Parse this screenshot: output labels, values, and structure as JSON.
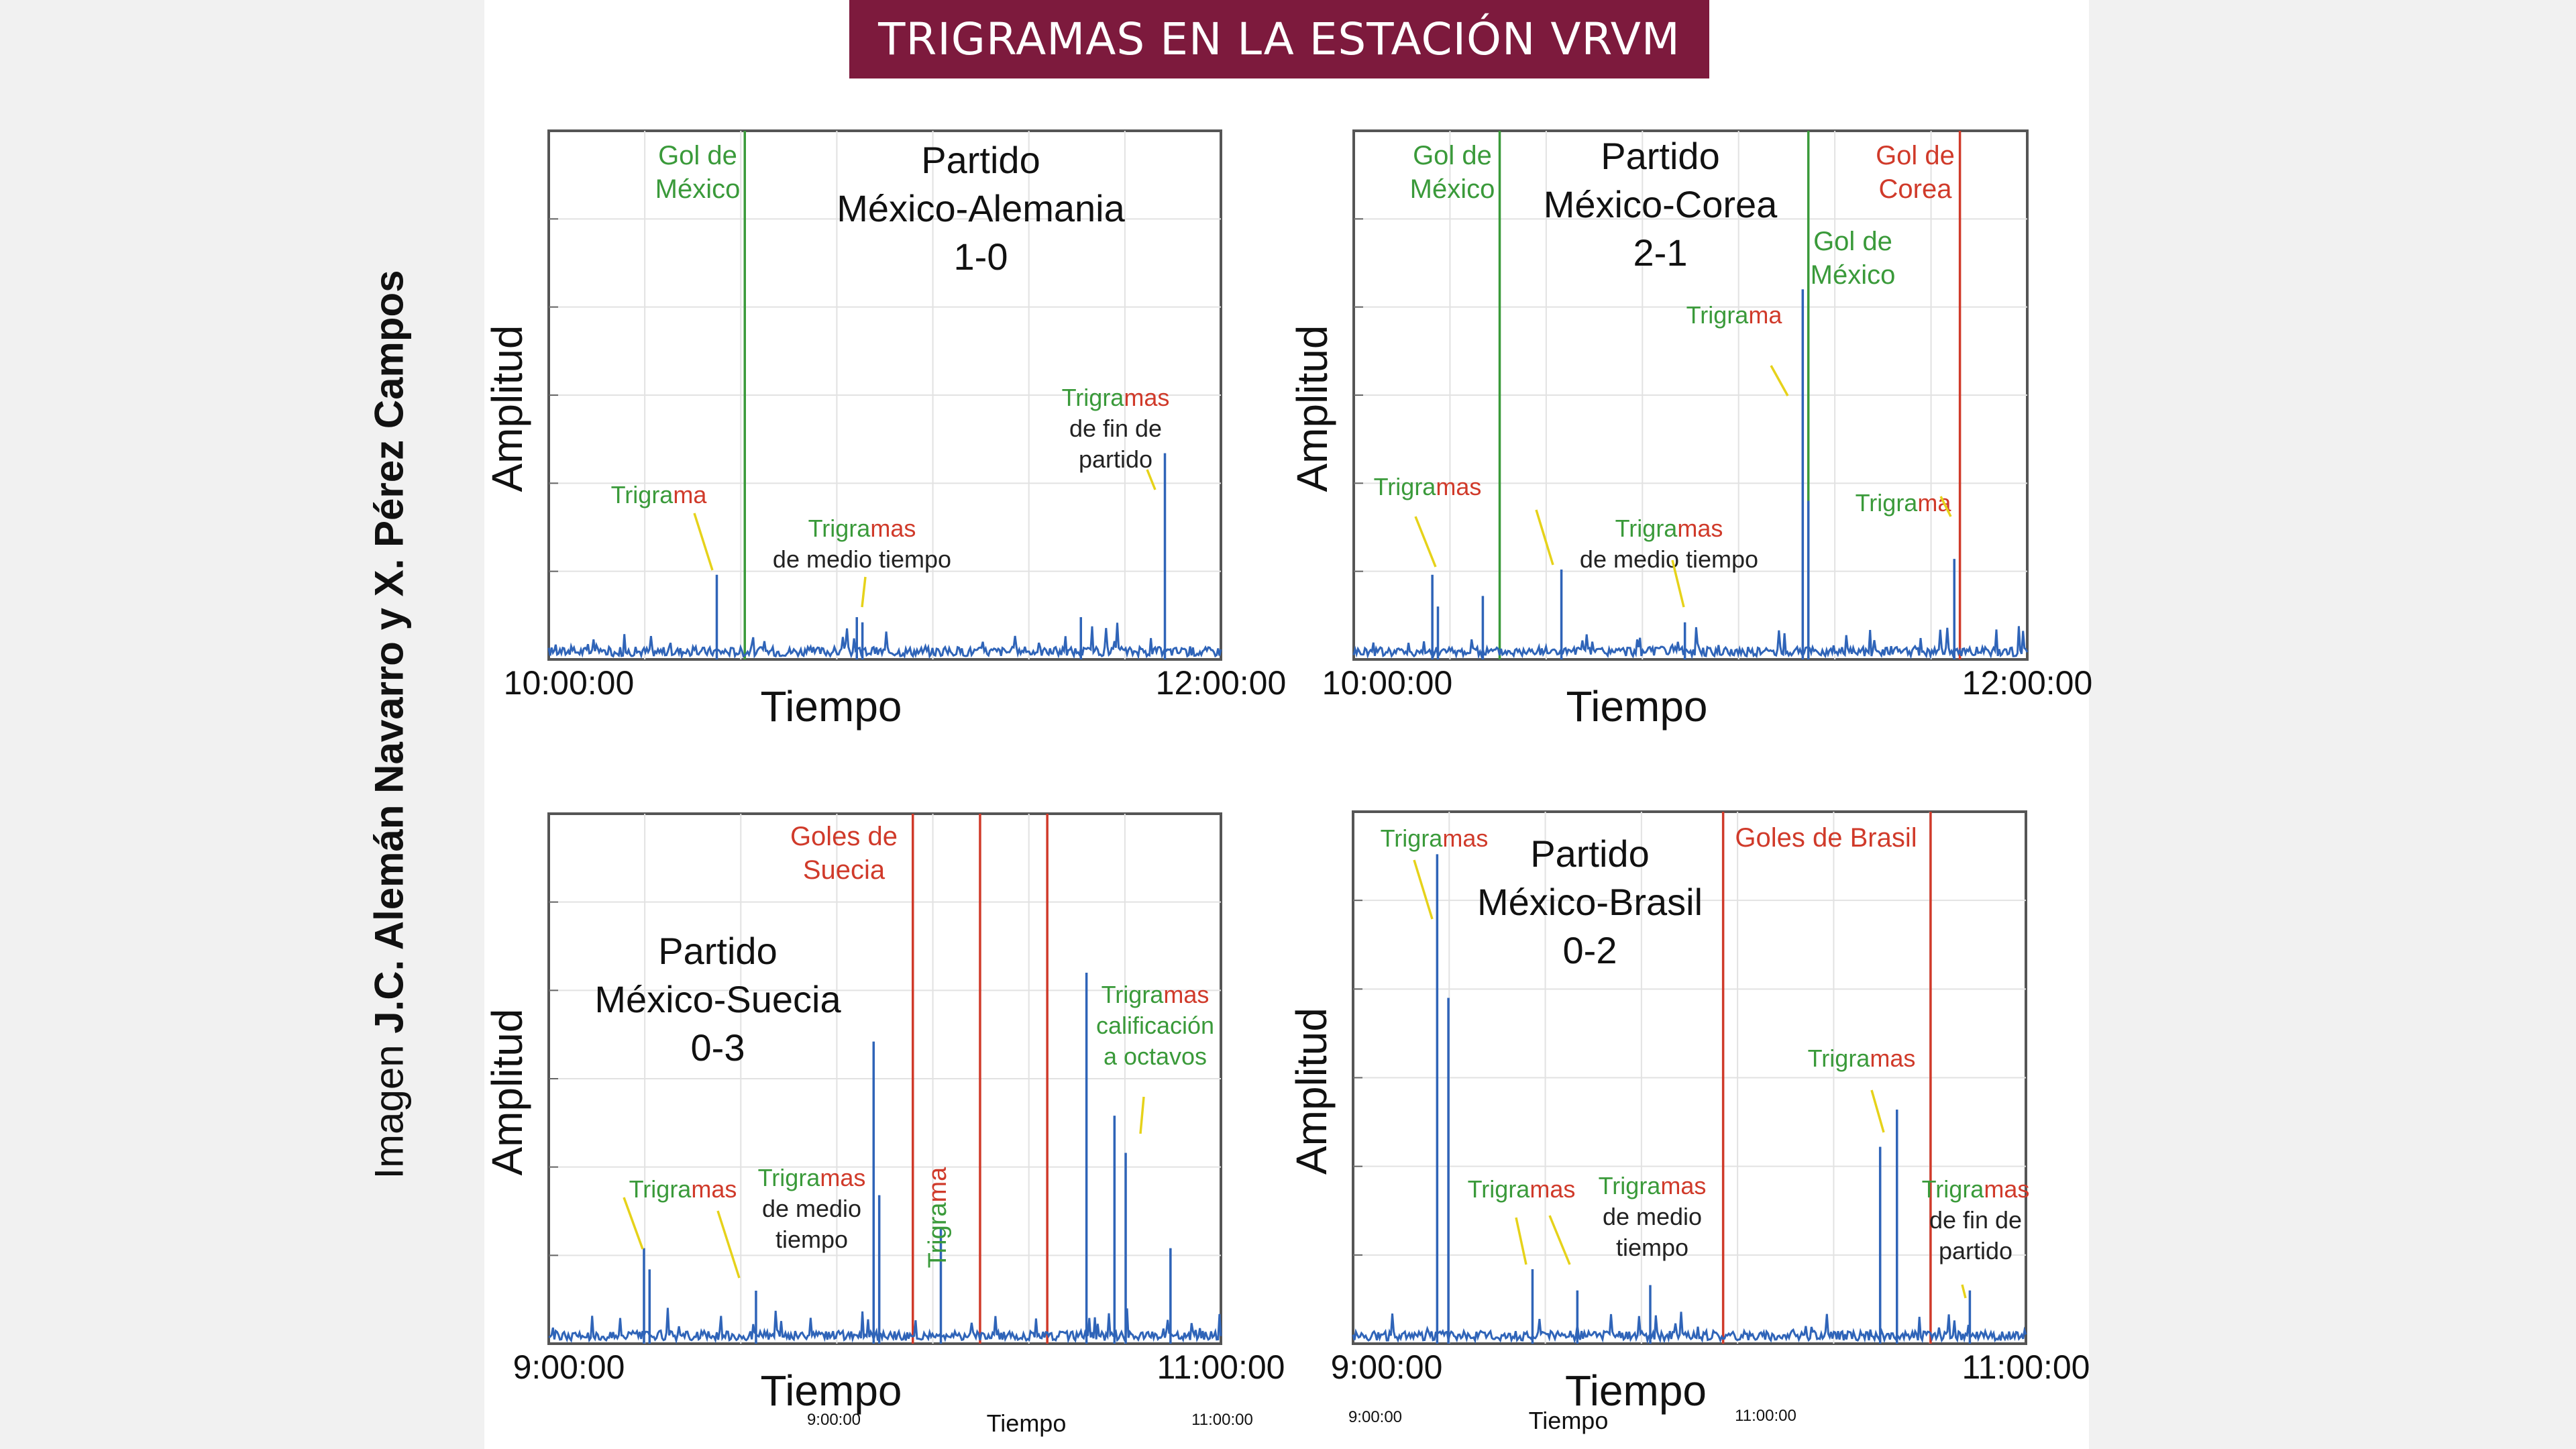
{
  "title": "TRIGRAMAS EN LA ESTACIÓN VRVM",
  "credit": {
    "lead": "Imagen ",
    "names": "J.C. Alemán Navarro y X. Pérez Campos"
  },
  "colors": {
    "banner": "#7d1a3d",
    "trace": "#2f64b8",
    "mexico": "#3a9a3a",
    "rival": "#d03a2a",
    "arrow": "#e6d21a",
    "green_text": "#3a9a3a",
    "red_text": "#d03a2a"
  },
  "footer": {
    "left_time": "9:00:00",
    "center_label": "Tiempo",
    "right_time": "11:00:00"
  },
  "footer2": {
    "left_time": "9:00:00",
    "center_label": "Tiempo",
    "right_time": "11:00:00"
  },
  "chart_data": [
    {
      "type": "line",
      "title_lines": [
        "Partido",
        "México-Alemania",
        "1-0"
      ],
      "xlabel": "Tiempo",
      "ylabel": "Amplitud",
      "x_start": "10:00:00",
      "x_end": "12:00:00",
      "xlim_min": [
        0,
        120
      ],
      "ylim": [
        0,
        1
      ],
      "events": [
        {
          "label_lines": [
            "Gol de",
            "México"
          ],
          "team": "mexico",
          "x_min": 35
        }
      ],
      "spikes": [
        {
          "x_min": 30,
          "y": 0.16
        },
        {
          "x_min": 55,
          "y": 0.08
        },
        {
          "x_min": 56,
          "y": 0.07
        },
        {
          "x_min": 95,
          "y": 0.08
        },
        {
          "x_min": 110,
          "y": 0.39
        }
      ],
      "annotations": [
        {
          "parts": [
            {
              "t": "Trigra",
              "c": "green"
            },
            {
              "t": "ma",
              "c": "red"
            }
          ],
          "lines": []
        },
        {
          "parts": [
            {
              "t": "Trigra",
              "c": "green"
            },
            {
              "t": "mas",
              "c": "red"
            }
          ],
          "lines": [
            "de medio tiempo"
          ]
        },
        {
          "parts": [
            {
              "t": "Trigra",
              "c": "green"
            },
            {
              "t": "mas",
              "c": "red"
            }
          ],
          "lines": [
            "de fin de",
            "partido"
          ]
        }
      ]
    },
    {
      "type": "line",
      "title_lines": [
        "Partido",
        "México-Corea",
        "2-1"
      ],
      "xlabel": "Tiempo",
      "ylabel": "Amplitud",
      "x_start": "10:00:00",
      "x_end": "12:00:00",
      "xlim_min": [
        0,
        120
      ],
      "ylim": [
        0,
        1
      ],
      "events": [
        {
          "label_lines": [
            "Gol de",
            "México"
          ],
          "team": "mexico",
          "x_min": 26
        },
        {
          "label_lines": [
            "Gol de",
            "México"
          ],
          "team": "mexico",
          "x_min": 81
        },
        {
          "label_lines": [
            "Gol de",
            "Corea"
          ],
          "team": "rival",
          "x_min": 108
        }
      ],
      "spikes": [
        {
          "x_min": 14,
          "y": 0.16
        },
        {
          "x_min": 15,
          "y": 0.1
        },
        {
          "x_min": 23,
          "y": 0.12
        },
        {
          "x_min": 37,
          "y": 0.17
        },
        {
          "x_min": 59,
          "y": 0.07
        },
        {
          "x_min": 80,
          "y": 0.7
        },
        {
          "x_min": 81,
          "y": 0.3
        },
        {
          "x_min": 107,
          "y": 0.19
        }
      ],
      "annotations": [
        {
          "parts": [
            {
              "t": "Trigra",
              "c": "green"
            },
            {
              "t": "mas",
              "c": "red"
            }
          ],
          "lines": []
        },
        {
          "parts": [
            {
              "t": "Trigra",
              "c": "green"
            },
            {
              "t": "mas",
              "c": "red"
            }
          ],
          "lines": [
            "de medio tiempo"
          ]
        },
        {
          "parts": [
            {
              "t": "Trigra",
              "c": "green"
            },
            {
              "t": "ma",
              "c": "red"
            }
          ],
          "lines": []
        },
        {
          "parts": [
            {
              "t": "Trigra",
              "c": "green"
            },
            {
              "t": "ma",
              "c": "red"
            }
          ],
          "lines": []
        }
      ]
    },
    {
      "type": "line",
      "title_lines": [
        "Partido",
        "México-Suecia",
        "0-3"
      ],
      "xlabel": "Tiempo",
      "ylabel": "Amplitud",
      "x_start": "9:00:00",
      "x_end": "11:00:00",
      "xlim_min": [
        0,
        120
      ],
      "ylim": [
        0,
        1
      ],
      "events": [
        {
          "label_lines": [
            "Goles de",
            "Suecia"
          ],
          "team": "rival",
          "x_min": 65
        },
        {
          "label_lines": [],
          "team": "rival",
          "x_min": 77
        },
        {
          "label_lines": [],
          "team": "rival",
          "x_min": 89
        }
      ],
      "spikes": [
        {
          "x_min": 17,
          "y": 0.18
        },
        {
          "x_min": 18,
          "y": 0.14
        },
        {
          "x_min": 37,
          "y": 0.1
        },
        {
          "x_min": 58,
          "y": 0.57
        },
        {
          "x_min": 59,
          "y": 0.28
        },
        {
          "x_min": 70,
          "y": 0.22
        },
        {
          "x_min": 96,
          "y": 0.7
        },
        {
          "x_min": 101,
          "y": 0.43
        },
        {
          "x_min": 103,
          "y": 0.36
        },
        {
          "x_min": 111,
          "y": 0.18
        }
      ],
      "annotations": [
        {
          "parts": [
            {
              "t": "Trigra",
              "c": "green"
            },
            {
              "t": "mas",
              "c": "red"
            }
          ],
          "lines": []
        },
        {
          "parts": [
            {
              "t": "Trigra",
              "c": "green"
            },
            {
              "t": "mas",
              "c": "red"
            }
          ],
          "lines": [
            "de medio",
            "tiempo"
          ]
        },
        {
          "parts": [
            {
              "t": "Trigra",
              "c": "green"
            },
            {
              "t": "ma",
              "c": "red"
            }
          ],
          "lines": []
        },
        {
          "parts": [
            {
              "t": "Trigra",
              "c": "green"
            },
            {
              "t": "mas",
              "c": "red"
            }
          ],
          "lines_green": [
            "calificación",
            "a octavos"
          ]
        }
      ]
    },
    {
      "type": "line",
      "title_lines": [
        "Partido",
        "México-Brasil",
        "0-2"
      ],
      "xlabel": "Tiempo",
      "ylabel": "Amplitud",
      "x_start": "9:00:00",
      "x_end": "11:00:00",
      "xlim_min": [
        0,
        120
      ],
      "ylim": [
        0,
        1
      ],
      "events": [
        {
          "label_lines": [
            "Goles de Brasil"
          ],
          "team": "rival",
          "x_min": 66
        },
        {
          "label_lines": [],
          "team": "rival",
          "x_min": 103
        }
      ],
      "spikes": [
        {
          "x_min": 15,
          "y": 0.92
        },
        {
          "x_min": 17,
          "y": 0.65
        },
        {
          "x_min": 32,
          "y": 0.14
        },
        {
          "x_min": 40,
          "y": 0.1
        },
        {
          "x_min": 53,
          "y": 0.11
        },
        {
          "x_min": 94,
          "y": 0.37
        },
        {
          "x_min": 97,
          "y": 0.44
        },
        {
          "x_min": 110,
          "y": 0.1
        }
      ],
      "annotations": [
        {
          "parts": [
            {
              "t": "Trigra",
              "c": "green"
            },
            {
              "t": "mas",
              "c": "red"
            }
          ],
          "lines": []
        },
        {
          "parts": [
            {
              "t": "Trigra",
              "c": "green"
            },
            {
              "t": "mas",
              "c": "red"
            }
          ],
          "lines": []
        },
        {
          "parts": [
            {
              "t": "Trigra",
              "c": "green"
            },
            {
              "t": "mas",
              "c": "red"
            }
          ],
          "lines": [
            "de medio",
            "tiempo"
          ]
        },
        {
          "parts": [
            {
              "t": "Trigra",
              "c": "green"
            },
            {
              "t": "mas",
              "c": "red"
            }
          ],
          "lines": []
        },
        {
          "parts": [
            {
              "t": "Trigra",
              "c": "green"
            },
            {
              "t": "mas",
              "c": "red"
            }
          ],
          "lines": [
            "de fin de",
            "partido"
          ]
        }
      ]
    }
  ]
}
